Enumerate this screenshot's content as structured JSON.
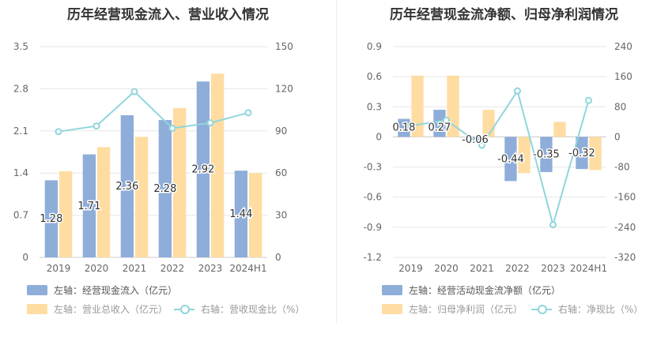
{
  "chart_data": [
    {
      "type": "bar",
      "title": "历年经营现金流入、营业收入情况",
      "categories": [
        "2019",
        "2020",
        "2021",
        "2022",
        "2023",
        "2024H1"
      ],
      "y_left_ticks": [
        "0",
        "0.7",
        "1.4",
        "2.1",
        "2.8",
        "3.5"
      ],
      "y_right_ticks": [
        "0",
        "30",
        "60",
        "90",
        "120",
        "150"
      ],
      "ylim_left": [
        0,
        3.5
      ],
      "ylim_right": [
        0,
        150
      ],
      "series": [
        {
          "name": "左轴：经营现金流入（亿元）",
          "axis": "left",
          "kind": "bar",
          "color": "#8eadd9",
          "values": [
            1.28,
            1.71,
            2.36,
            2.28,
            2.92,
            1.44
          ],
          "labels": [
            "1.28",
            "1.71",
            "2.36",
            "2.28",
            "2.92",
            "1.44"
          ]
        },
        {
          "name": "左轴：营业总收入（亿元）",
          "axis": "left",
          "kind": "bar",
          "color": "#ffdca1",
          "values": [
            1.43,
            1.83,
            2.0,
            2.48,
            3.05,
            1.4
          ]
        },
        {
          "name": "右轴：营收现金比（%）",
          "axis": "right",
          "kind": "line",
          "color": "#8fd6dc",
          "values": [
            89.5,
            93.5,
            118,
            91.9,
            95.7,
            102.9
          ]
        }
      ]
    },
    {
      "type": "bar",
      "title": "历年经营现金流净额、归母净利润情况",
      "categories": [
        "2019",
        "2020",
        "2021",
        "2022",
        "2023",
        "2024H1"
      ],
      "y_left_ticks": [
        "-1.2",
        "-0.9",
        "-0.6",
        "-0.3",
        "0",
        "0.3",
        "0.6",
        "0.9"
      ],
      "y_right_ticks": [
        "-320",
        "-240",
        "-160",
        "-80",
        "0",
        "80",
        "160",
        "240"
      ],
      "ylim_left": [
        -1.2,
        0.9
      ],
      "ylim_right": [
        -320,
        240
      ],
      "series": [
        {
          "name": "左轴：经营活动现金流净额（亿元）",
          "axis": "left",
          "kind": "bar",
          "color": "#8eadd9",
          "values": [
            0.18,
            0.27,
            -0.06,
            -0.44,
            -0.35,
            -0.32
          ],
          "labels": [
            "0.18",
            "0.27",
            "-0.06",
            "-0.44",
            "-0.35",
            "-0.32"
          ]
        },
        {
          "name": "左轴：归母净利润（亿元）",
          "axis": "left",
          "kind": "bar",
          "color": "#ffdca1",
          "values": [
            0.61,
            0.61,
            0.27,
            -0.36,
            0.15,
            -0.33
          ]
        },
        {
          "name": "右轴：净现比（%）",
          "axis": "right",
          "kind": "line",
          "color": "#8fd6dc",
          "values": [
            29.5,
            44.3,
            -22.2,
            122.2,
            -233.3,
            97.0
          ]
        }
      ]
    }
  ]
}
